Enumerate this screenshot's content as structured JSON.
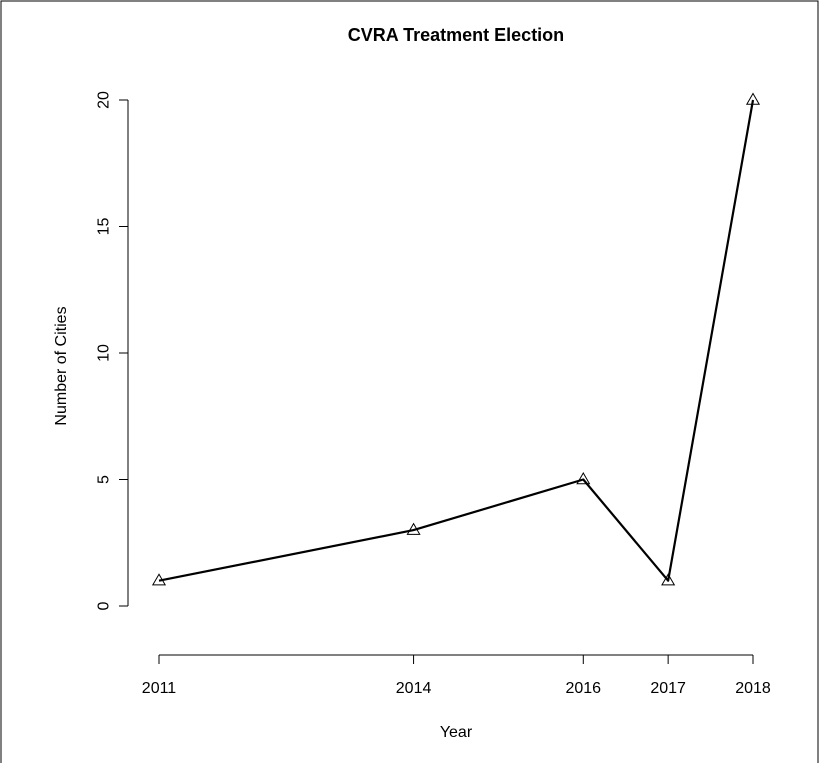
{
  "chart_data": {
    "type": "line",
    "title": "CVRA Treatment Election",
    "xlabel": "Year",
    "ylabel": "Number of Cities",
    "x": [
      2011,
      2014,
      2016,
      2017,
      2018
    ],
    "y": [
      1,
      3,
      5,
      1,
      20
    ],
    "x_ticks": [
      2011,
      2014,
      2016,
      2017,
      2018
    ],
    "y_ticks": [
      0,
      5,
      10,
      15,
      20
    ],
    "xlim": [
      2011,
      2018
    ],
    "ylim": [
      0,
      20
    ],
    "marker": "open-triangle",
    "grid": false,
    "line_color": "#000000",
    "background": "#ffffff",
    "frame_color": "#000000"
  }
}
